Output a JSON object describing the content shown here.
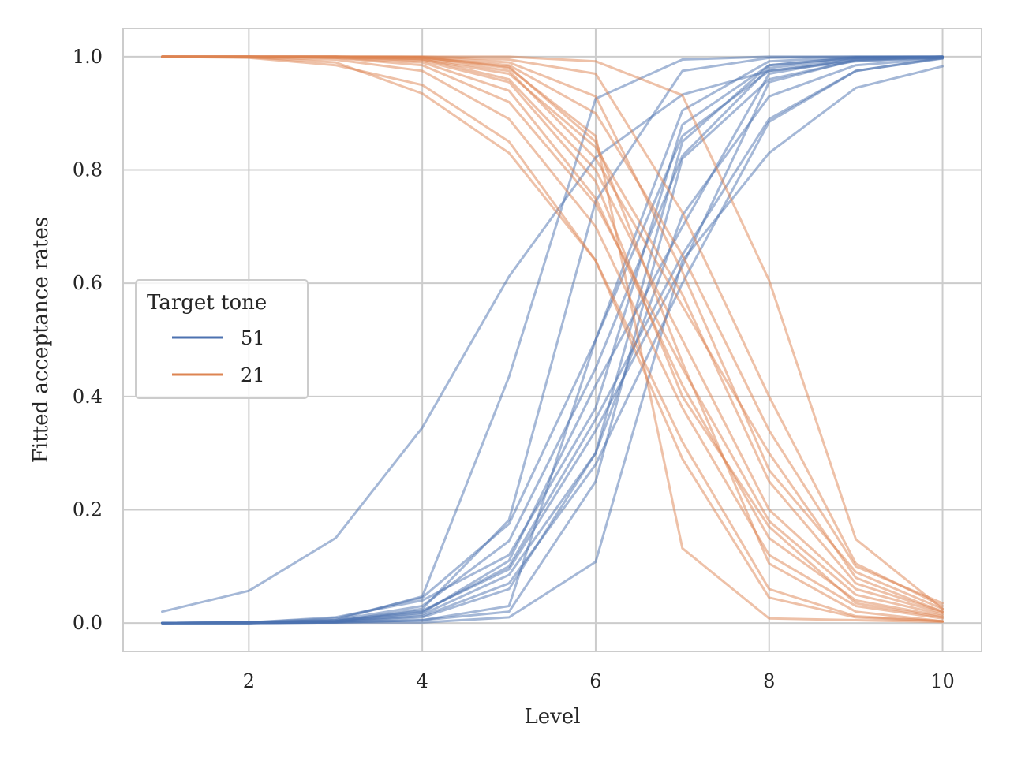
{
  "chart_data": {
    "type": "line",
    "title": "",
    "xlabel": "Level",
    "ylabel": "Fitted acceptance rates",
    "xlim": [
      0.55,
      10.45
    ],
    "ylim": [
      -0.05,
      1.05
    ],
    "xticks": [
      2,
      4,
      6,
      8,
      10
    ],
    "yticks": [
      0.0,
      0.2,
      0.4,
      0.6,
      0.8,
      1.0
    ],
    "grid": true,
    "legend": {
      "title": "Target tone",
      "placement": "center-left",
      "entries": [
        {
          "label": "51",
          "color": "#4c72b0"
        },
        {
          "label": "21",
          "color": "#dd8452"
        }
      ]
    },
    "x": [
      1,
      2,
      3,
      4,
      5,
      6,
      7,
      8,
      9,
      10
    ],
    "groups": [
      {
        "tone": "51",
        "color": "#4c72b0",
        "lines": [
          [
            0.02,
            0.057,
            0.15,
            0.345,
            0.612,
            0.822,
            0.933,
            0.975,
            0.992,
            0.998
          ],
          [
            0.0,
            0.001,
            0.005,
            0.047,
            0.435,
            0.926,
            0.995,
            1.0,
            1.0,
            1.0
          ],
          [
            0.0,
            0.001,
            0.003,
            0.025,
            0.182,
            0.745,
            0.975,
            0.998,
            1.0,
            1.0
          ],
          [
            0.0,
            0.0,
            0.001,
            0.005,
            0.03,
            0.5,
            0.905,
            0.992,
            0.999,
            1.0
          ],
          [
            0.0,
            0.001,
            0.008,
            0.045,
            0.175,
            0.5,
            0.86,
            0.975,
            0.995,
            0.999
          ],
          [
            0.0,
            0.0,
            0.002,
            0.015,
            0.085,
            0.3,
            0.85,
            0.985,
            0.999,
            1.0
          ],
          [
            0.0,
            0.0,
            0.001,
            0.005,
            0.02,
            0.25,
            0.82,
            0.96,
            0.993,
            0.999
          ],
          [
            0.0,
            0.0,
            0.001,
            0.001,
            0.01,
            0.108,
            0.64,
            0.83,
            0.945,
            0.983
          ],
          [
            0.0,
            0.001,
            0.01,
            0.04,
            0.12,
            0.38,
            0.88,
            0.985,
            0.998,
            1.0
          ],
          [
            0.0,
            0.0,
            0.002,
            0.01,
            0.06,
            0.3,
            0.72,
            0.93,
            0.985,
            0.997
          ],
          [
            0.0,
            0.0,
            0.003,
            0.02,
            0.1,
            0.36,
            0.65,
            0.89,
            0.975,
            0.998
          ],
          [
            0.0,
            0.001,
            0.005,
            0.03,
            0.145,
            0.45,
            0.825,
            0.98,
            0.998,
            1.0
          ],
          [
            0.0,
            0.0,
            0.002,
            0.012,
            0.07,
            0.28,
            0.6,
            0.885,
            0.975,
            0.997
          ],
          [
            0.0,
            0.0,
            0.004,
            0.022,
            0.095,
            0.34,
            0.63,
            0.955,
            0.995,
            0.999
          ],
          [
            0.0,
            0.0,
            0.003,
            0.018,
            0.11,
            0.42,
            0.7,
            0.97,
            0.997,
            1.0
          ]
        ]
      },
      {
        "tone": "21",
        "color": "#dd8452",
        "lines": [
          [
            1.0,
            1.0,
            1.0,
            1.0,
            1.0,
            0.992,
            0.932,
            0.605,
            0.148,
            0.025
          ],
          [
            1.0,
            1.0,
            1.0,
            1.0,
            0.995,
            0.97,
            0.725,
            0.4,
            0.105,
            0.03
          ],
          [
            1.0,
            1.0,
            1.0,
            0.999,
            0.982,
            0.85,
            0.46,
            0.105,
            0.02,
            0.003
          ],
          [
            1.0,
            1.0,
            1.0,
            0.999,
            0.98,
            0.86,
            0.132,
            0.008,
            0.005,
            0.002
          ],
          [
            1.0,
            0.999,
            0.99,
            0.935,
            0.83,
            0.64,
            0.29,
            0.045,
            0.01,
            0.003
          ],
          [
            1.0,
            0.998,
            0.985,
            0.95,
            0.85,
            0.64,
            0.32,
            0.06,
            0.012,
            0.003
          ],
          [
            1.0,
            0.999,
            0.995,
            0.975,
            0.89,
            0.7,
            0.38,
            0.12,
            0.03,
            0.008
          ],
          [
            1.0,
            1.0,
            0.998,
            0.985,
            0.92,
            0.74,
            0.45,
            0.18,
            0.05,
            0.015
          ],
          [
            1.0,
            1.0,
            1.0,
            0.995,
            0.97,
            0.84,
            0.58,
            0.25,
            0.07,
            0.02
          ],
          [
            1.0,
            1.0,
            1.0,
            0.998,
            0.985,
            0.9,
            0.65,
            0.34,
            0.1,
            0.035
          ],
          [
            1.0,
            1.0,
            0.998,
            0.99,
            0.94,
            0.75,
            0.42,
            0.15,
            0.04,
            0.012
          ],
          [
            1.0,
            1.0,
            0.999,
            0.996,
            0.96,
            0.8,
            0.5,
            0.2,
            0.06,
            0.018
          ],
          [
            1.0,
            1.0,
            1.0,
            0.999,
            0.99,
            0.93,
            0.62,
            0.27,
            0.09,
            0.025
          ],
          [
            1.0,
            1.0,
            0.999,
            0.993,
            0.955,
            0.78,
            0.4,
            0.17,
            0.035,
            0.01
          ],
          [
            1.0,
            1.0,
            1.0,
            0.997,
            0.975,
            0.82,
            0.56,
            0.3,
            0.08,
            0.02
          ]
        ]
      }
    ]
  }
}
